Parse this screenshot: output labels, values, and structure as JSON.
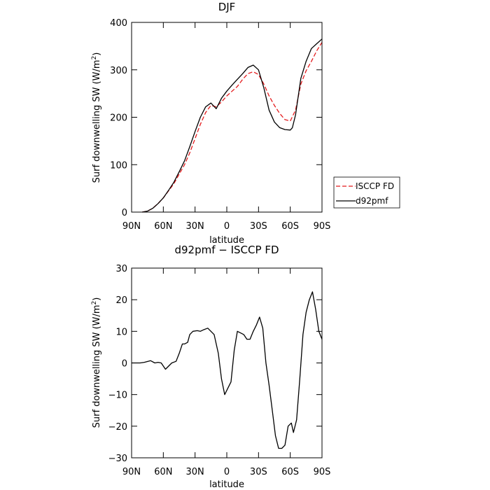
{
  "chart_data": [
    {
      "type": "line",
      "title": "DJF",
      "xlabel": "latitude",
      "ylabel": "Surf downwelling SW (W/m²)",
      "ylabel_parts": {
        "before": "Surf downwelling SW (W/m",
        "sup": "2",
        "after": ")"
      },
      "xlim": [
        -90,
        90
      ],
      "ylim": [
        0,
        400
      ],
      "xticks": [
        -90,
        -60,
        -30,
        0,
        30,
        60,
        90
      ],
      "xtick_labels": [
        "90N",
        "60N",
        "30N",
        "0",
        "30S",
        "60S",
        "90S"
      ],
      "yticks": [
        0,
        100,
        200,
        300,
        400
      ],
      "ytick_labels": [
        "0",
        "100",
        "200",
        "300",
        "400"
      ],
      "legend": {
        "position": "right, outside plot"
      },
      "series": [
        {
          "name": "ISCCP  FD",
          "color": "#e41a1c",
          "dash": "dashed",
          "x": [
            -80,
            -75,
            -70,
            -65,
            -60,
            -55,
            -50,
            -45,
            -40,
            -35,
            -30,
            -25,
            -20,
            -15,
            -10,
            -5,
            0,
            5,
            10,
            15,
            20,
            25,
            30,
            35,
            40,
            45,
            50,
            55,
            60,
            65,
            70,
            75,
            80,
            85,
            90
          ],
          "values": [
            0,
            2,
            8,
            18,
            30,
            45,
            60,
            80,
            100,
            125,
            155,
            185,
            210,
            225,
            222,
            232,
            245,
            255,
            265,
            280,
            292,
            296,
            290,
            270,
            245,
            225,
            208,
            195,
            192,
            215,
            270,
            298,
            318,
            340,
            358
          ]
        },
        {
          "name": "d92pmf",
          "color": "#000000",
          "dash": "solid",
          "x": [
            -80,
            -75,
            -70,
            -65,
            -60,
            -55,
            -50,
            -45,
            -40,
            -35,
            -30,
            -25,
            -20,
            -15,
            -10,
            -5,
            0,
            5,
            10,
            15,
            20,
            25,
            30,
            35,
            40,
            45,
            50,
            55,
            60,
            62,
            65,
            70,
            75,
            80,
            85,
            90
          ],
          "values": [
            0,
            2,
            8,
            18,
            30,
            46,
            63,
            85,
            108,
            138,
            170,
            200,
            222,
            230,
            218,
            240,
            255,
            268,
            280,
            292,
            305,
            310,
            300,
            262,
            215,
            190,
            178,
            174,
            173,
            178,
            205,
            282,
            318,
            345,
            355,
            365
          ]
        }
      ]
    },
    {
      "type": "line",
      "title": "d92pmf − ISCCP FD",
      "xlabel": "latitude",
      "ylabel": "Surf downwelling SW (W/m²)",
      "ylabel_parts": {
        "before": "Surf downwelling SW (W/m",
        "sup": "2",
        "after": ")"
      },
      "xlim": [
        -90,
        90
      ],
      "ylim": [
        -30,
        30
      ],
      "xticks": [
        -90,
        -60,
        -30,
        0,
        30,
        60,
        90
      ],
      "xtick_labels": [
        "90N",
        "60N",
        "30N",
        "0",
        "30S",
        "60S",
        "90S"
      ],
      "yticks": [
        -30,
        -20,
        -10,
        0,
        10,
        20,
        30
      ],
      "ytick_labels": [
        "−30",
        "−20",
        "−10",
        "0",
        "10",
        "20",
        "30"
      ],
      "series": [
        {
          "color": "#000000",
          "dash": "solid",
          "x": [
            -90,
            -82,
            -78,
            -72,
            -68,
            -65,
            -62,
            -58,
            -55,
            -52,
            -48,
            -45,
            -42,
            -40,
            -37,
            -35,
            -32,
            -28,
            -25,
            -22,
            -18,
            -15,
            -12,
            -8,
            -5,
            -2,
            1,
            4,
            7,
            10,
            13,
            16,
            19,
            22,
            25,
            28,
            31,
            34,
            37,
            40,
            43,
            46,
            49,
            52,
            55,
            58,
            61,
            63,
            66,
            69,
            72,
            75,
            78,
            81,
            84,
            87,
            90
          ],
          "values": [
            0,
            0,
            0.2,
            0.7,
            0,
            0.2,
            0,
            -2,
            -1,
            0,
            0.5,
            3,
            6,
            6,
            6.5,
            9,
            10,
            10.2,
            10,
            10.5,
            11,
            10,
            9,
            3,
            -5,
            -10,
            -8,
            -6,
            4,
            10,
            9.5,
            9,
            7.5,
            7.5,
            10,
            12,
            14.5,
            11,
            0,
            -7,
            -15,
            -23,
            -27,
            -27,
            -26,
            -20,
            -19,
            -22,
            -18,
            -5,
            9,
            16,
            20,
            22.5,
            17,
            10,
            7.5
          ]
        }
      ]
    }
  ]
}
